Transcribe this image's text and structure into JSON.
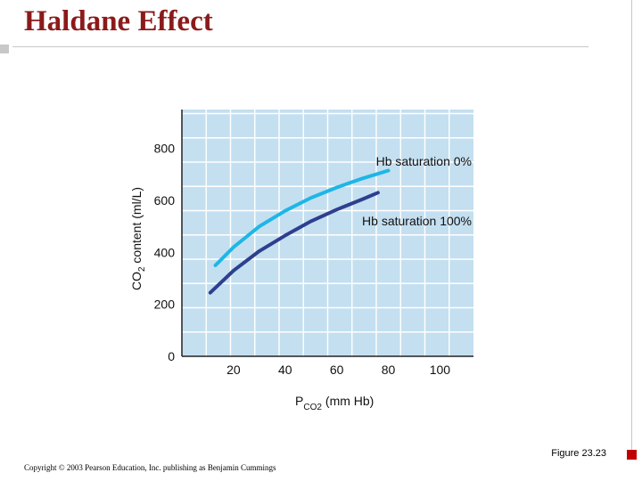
{
  "slide": {
    "title": "Haldane Effect",
    "figure_label": "Figure 23.23",
    "copyright": "Copyright © 2003 Pearson Education, Inc. publishing as Benjamin Cummings"
  },
  "colors": {
    "title": "#8B1A1A",
    "plot_bg": "#c4dff0",
    "grid": "#ffffff",
    "series_0": "#1eb6e6",
    "series_100": "#2e3f8f",
    "accent": "#c00000"
  },
  "chart_data": {
    "type": "line",
    "title": "",
    "xlabel_main": "P",
    "xlabel_sub": "CO2",
    "xlabel_unit": "(mm Hb)",
    "ylabel_pre": "CO",
    "ylabel_sub": "2",
    "ylabel_post": " content (ml/L)",
    "xlim": [
      0,
      113
    ],
    "ylim": [
      0,
      950
    ],
    "xticks": [
      20,
      40,
      60,
      80,
      100
    ],
    "yticks": [
      0,
      200,
      400,
      600,
      800
    ],
    "grid": true,
    "series": [
      {
        "name": "Hb saturation 0%",
        "x": [
          13,
          20,
          30,
          40,
          50,
          60,
          70,
          80
        ],
        "y": [
          350,
          420,
          500,
          560,
          610,
          650,
          685,
          715
        ]
      },
      {
        "name": "Hb saturation 100%",
        "x": [
          11,
          20,
          30,
          40,
          50,
          60,
          70,
          76
        ],
        "y": [
          245,
          330,
          405,
          465,
          520,
          565,
          605,
          630
        ]
      }
    ]
  }
}
